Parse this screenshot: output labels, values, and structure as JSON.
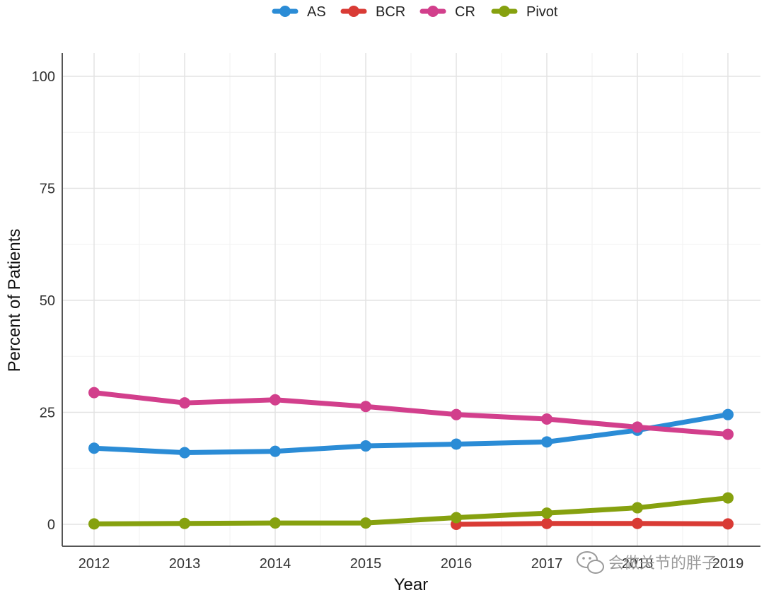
{
  "chart_data": {
    "type": "line",
    "x": [
      2012,
      2013,
      2014,
      2015,
      2016,
      2017,
      2018,
      2019
    ],
    "x_tick_labels": [
      "2012",
      "2013",
      "2014",
      "2015",
      "2016",
      "2017",
      "2018",
      "2019"
    ],
    "xlabel": "Year",
    "ylabel": "Percent of Patients",
    "ylim": [
      0,
      100
    ],
    "y_ticks": [
      0,
      25,
      50,
      75,
      100
    ],
    "y_tick_labels": [
      "0",
      "25",
      "50",
      "75",
      "100"
    ],
    "grid": true,
    "legend_position": "top",
    "series": [
      {
        "name": "AS",
        "color": "#2b8cd6",
        "points": [
          [
            2012,
            17.0
          ],
          [
            2013,
            16.0
          ],
          [
            2014,
            16.3
          ],
          [
            2015,
            17.5
          ],
          [
            2016,
            17.9
          ],
          [
            2017,
            18.4
          ],
          [
            2018,
            21.0
          ],
          [
            2019,
            24.5
          ]
        ]
      },
      {
        "name": "BCR",
        "color": "#d93b35",
        "points": [
          [
            2016,
            0.0
          ],
          [
            2017,
            0.2
          ],
          [
            2018,
            0.2
          ],
          [
            2019,
            0.1
          ]
        ]
      },
      {
        "name": "CR",
        "color": "#d23f8c",
        "points": [
          [
            2012,
            29.4
          ],
          [
            2013,
            27.1
          ],
          [
            2014,
            27.8
          ],
          [
            2015,
            26.3
          ],
          [
            2016,
            24.5
          ],
          [
            2017,
            23.5
          ],
          [
            2018,
            21.7
          ],
          [
            2019,
            20.1
          ]
        ]
      },
      {
        "name": "Pivot",
        "color": "#86a10f",
        "points": [
          [
            2012,
            0.1
          ],
          [
            2013,
            0.2
          ],
          [
            2014,
            0.3
          ],
          [
            2015,
            0.3
          ],
          [
            2016,
            1.5
          ],
          [
            2017,
            2.5
          ],
          [
            2018,
            3.7
          ],
          [
            2019,
            5.9
          ]
        ]
      }
    ]
  },
  "watermark": {
    "text": "会做关节的胖子",
    "icon": "wechat-icon"
  }
}
